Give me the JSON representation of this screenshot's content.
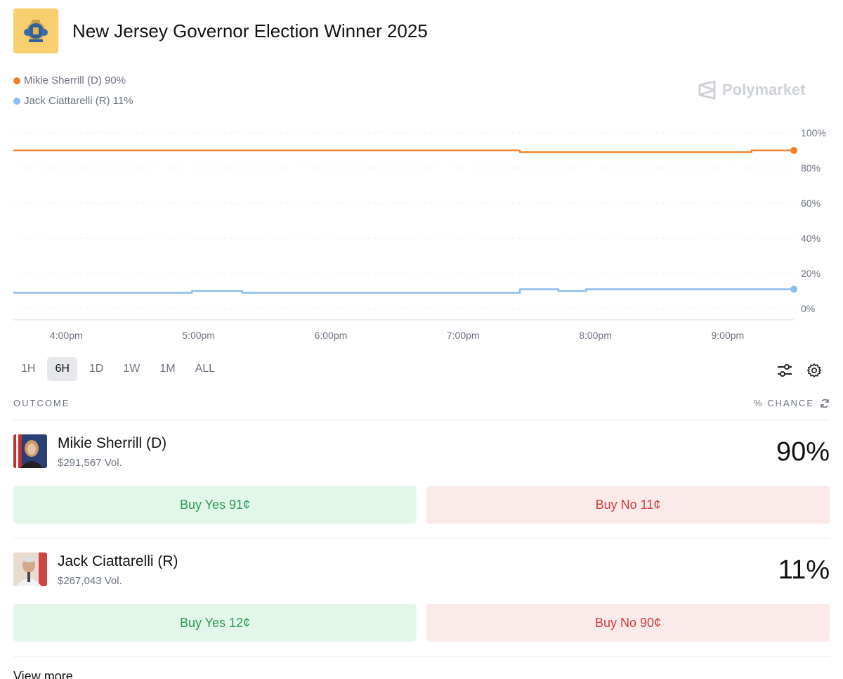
{
  "header": {
    "title": "New Jersey Governor Election Winner 2025"
  },
  "brand": {
    "name": "Polymarket"
  },
  "legend": [
    {
      "label": "Mikie Sherrill (D) 90%",
      "color": "#f0822f"
    },
    {
      "label": "Jack Ciattarelli (R) 11%",
      "color": "#8cbcf0"
    }
  ],
  "chart_data": {
    "type": "line",
    "x_ticks": [
      "4:00pm",
      "5:00pm",
      "6:00pm",
      "7:00pm",
      "8:00pm",
      "9:00pm"
    ],
    "y_ticks": [
      "100%",
      "80%",
      "60%",
      "40%",
      "20%",
      "0%"
    ],
    "ylim": [
      0,
      100
    ],
    "xlim": [
      15.6,
      21.5
    ],
    "grid": true,
    "series": [
      {
        "name": "Mikie Sherrill (D)",
        "color": "#f0822f",
        "x": [
          15.6,
          19.43,
          19.43,
          21.18,
          21.18,
          21.5
        ],
        "values": [
          90,
          90,
          89,
          89,
          90,
          90
        ]
      },
      {
        "name": "Jack Ciattarelli (R)",
        "color": "#8cbcf0",
        "x": [
          15.6,
          16.95,
          16.95,
          17.33,
          17.33,
          19.43,
          19.43,
          19.72,
          19.72,
          19.93,
          19.93,
          21.5
        ],
        "values": [
          9,
          9,
          10,
          10,
          9,
          9,
          11,
          11,
          10,
          10,
          11,
          11
        ]
      }
    ]
  },
  "ranges": [
    {
      "label": "1H",
      "active": false
    },
    {
      "label": "6H",
      "active": true
    },
    {
      "label": "1D",
      "active": false
    },
    {
      "label": "1W",
      "active": false
    },
    {
      "label": "1M",
      "active": false
    },
    {
      "label": "ALL",
      "active": false
    }
  ],
  "tools": [
    "sliders-icon",
    "gear-icon"
  ],
  "outcome_header": {
    "left": "OUTCOME",
    "right": "% CHANCE"
  },
  "outcomes": [
    {
      "name": "Mikie Sherrill (D)",
      "volume": "$291,567 Vol.",
      "percent": "90%",
      "buy_yes": "Buy Yes 91¢",
      "buy_no": "Buy No 11¢"
    },
    {
      "name": "Jack Ciattarelli (R)",
      "volume": "$267,043 Vol.",
      "percent": "11%",
      "buy_yes": "Buy Yes 12¢",
      "buy_no": "Buy No 90¢"
    }
  ],
  "footer": {
    "view_more": "View more"
  }
}
